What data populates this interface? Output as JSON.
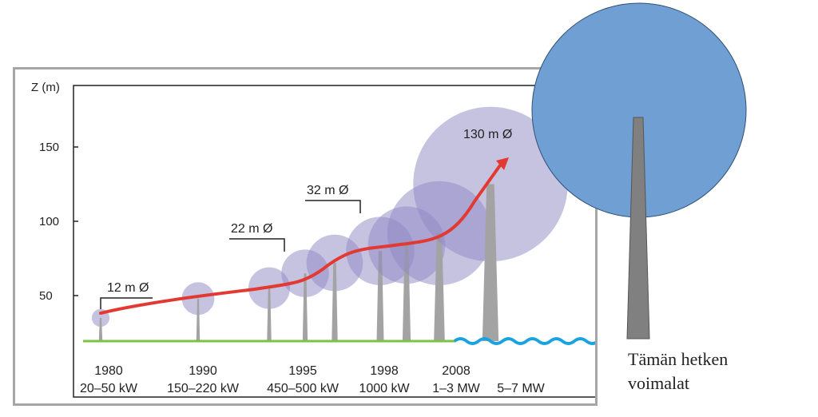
{
  "chart_data": {
    "type": "bubble",
    "ylabel": "Z (m)",
    "yticks": [
      50,
      100,
      150
    ],
    "ylim": [
      0,
      180
    ],
    "x_labels": [
      {
        "year": "1980",
        "power": "20–50 kW"
      },
      {
        "year": "1990",
        "power": "150–220 kW"
      },
      {
        "year": "1995",
        "power": "450–500 kW"
      },
      {
        "year": "1998",
        "power": "1000 kW"
      },
      {
        "year": "2008",
        "power": "1–3 MW"
      },
      {
        "year": "",
        "power": "5–7 MW"
      }
    ],
    "turbines": [
      {
        "hub_height_m": 35,
        "rotor_diameter_m": 12
      },
      {
        "hub_height_m": 48,
        "rotor_diameter_m": 22
      },
      {
        "hub_height_m": 55,
        "rotor_diameter_m": 28
      },
      {
        "hub_height_m": 65,
        "rotor_diameter_m": 32
      },
      {
        "hub_height_m": 72,
        "rotor_diameter_m": 38
      },
      {
        "hub_height_m": 80,
        "rotor_diameter_m": 46
      },
      {
        "hub_height_m": 84,
        "rotor_diameter_m": 52
      },
      {
        "hub_height_m": 92,
        "rotor_diameter_m": 70
      },
      {
        "hub_height_m": 125,
        "rotor_diameter_m": 104
      }
    ],
    "annotations": [
      "12 m Ø",
      "22 m Ø",
      "32 m Ø",
      "130 m Ø"
    ],
    "colors": {
      "rotor": "#8e88c4",
      "tower": "#a3a3a3",
      "trend": "#e23a32",
      "ground": "#7cc243",
      "sea": "#1aa3e0"
    }
  },
  "current_turbine": {
    "label_line1": "Tämän hetken",
    "label_line2": "voimalat",
    "rotor_color": "#6f9fd3",
    "tower_color": "#808080"
  }
}
